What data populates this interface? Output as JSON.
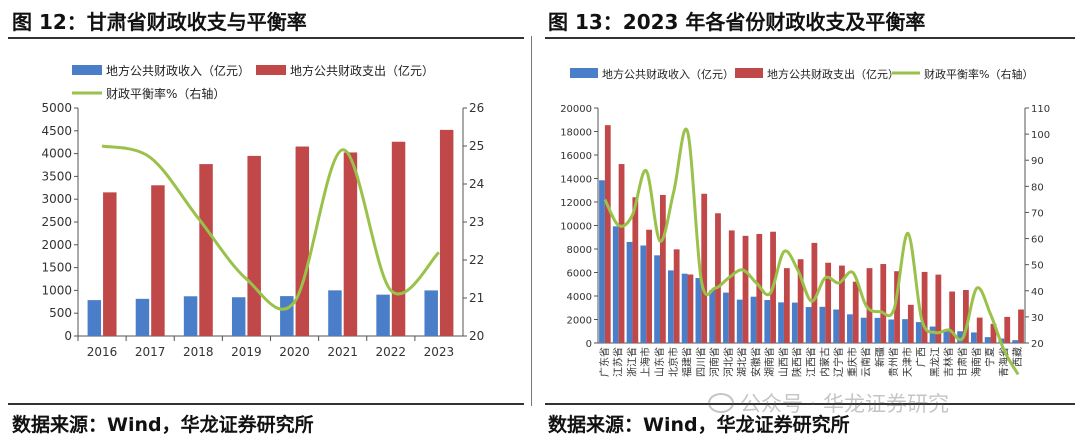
{
  "left_panel": {
    "title": "图 12：甘肃省财政收支与平衡率",
    "source": "数据来源：Wind，华龙证券研究所"
  },
  "right_panel": {
    "title": "图 13：2023 年各省份财政收支及平衡率",
    "source": "数据来源：Wind，华龙证券研究所"
  },
  "watermark": "公众号 · 华龙证券研究",
  "colors": {
    "revenue": "#4a7ec8",
    "expenditure": "#c04848",
    "ratio": "#9ac14a"
  },
  "chart_data": [
    {
      "type": "bar",
      "title": "甘肃省财政收支与平衡率",
      "categories": [
        "2016",
        "2017",
        "2018",
        "2019",
        "2020",
        "2021",
        "2022",
        "2023"
      ],
      "series": [
        {
          "name": "地方公共财政收入（亿元）",
          "axis": "left",
          "values": [
            787,
            815,
            871,
            850,
            875,
            1001,
            907,
            1000
          ]
        },
        {
          "name": "地方公共财政支出（亿元）",
          "axis": "left",
          "values": [
            3150,
            3305,
            3770,
            3950,
            4155,
            4025,
            4260,
            4520
          ]
        },
        {
          "name": "财政平衡率%（右轴）",
          "type": "line",
          "axis": "right",
          "values": [
            25.0,
            24.7,
            23.1,
            21.5,
            20.9,
            24.9,
            21.2,
            22.2
          ]
        }
      ],
      "ylim": [
        0,
        5000
      ],
      "yticks": [
        0,
        500,
        1000,
        1500,
        2000,
        2500,
        3000,
        3500,
        4000,
        4500,
        5000
      ],
      "y2lim": [
        20,
        26
      ],
      "y2ticks": [
        20,
        21,
        22,
        23,
        24,
        25,
        26
      ],
      "legend": "top"
    },
    {
      "type": "bar",
      "title": "2023 年各省份财政收支及平衡率",
      "categories": [
        "广东省",
        "江苏省",
        "浙江省",
        "上海市",
        "山东省",
        "北京市",
        "福建省",
        "四川省",
        "河南省",
        "河北省",
        "湖北省",
        "安徽省",
        "湖南省",
        "山西省",
        "陕西省",
        "江西省",
        "内蒙古",
        "辽宁省",
        "重庆市",
        "云南省",
        "新疆",
        "贵州省",
        "天津市",
        "广西",
        "黑龙江",
        "吉林省",
        "甘肃省",
        "海南省",
        "宁夏",
        "青海省",
        "西藏"
      ],
      "series": [
        {
          "name": "地方公共财政收入（亿元）",
          "axis": "left",
          "values": [
            13850,
            9930,
            8600,
            8300,
            7460,
            6180,
            5900,
            5530,
            4510,
            4290,
            3690,
            3940,
            3660,
            3460,
            3440,
            3060,
            3080,
            2850,
            2440,
            2150,
            2140,
            2000,
            2030,
            1780,
            1400,
            1100,
            1000,
            900,
            500,
            380,
            240
          ]
        },
        {
          "name": "地方公共财政支出（亿元）",
          "axis": "left",
          "values": [
            18540,
            15230,
            12400,
            9640,
            12600,
            7970,
            5830,
            12700,
            11040,
            9580,
            9120,
            9280,
            9470,
            6370,
            7130,
            8520,
            6830,
            6590,
            5220,
            6370,
            6720,
            6110,
            3250,
            6050,
            5820,
            4380,
            4510,
            2160,
            1630,
            2220,
            2850
          ]
        },
        {
          "name": "财政平衡率%（右轴）",
          "type": "line",
          "axis": "right",
          "values": [
            75,
            65,
            69,
            86,
            59,
            78,
            101,
            44,
            41,
            45,
            48,
            43,
            39,
            55,
            48,
            36,
            45,
            43,
            47,
            34,
            32,
            33,
            62,
            29,
            24,
            25,
            22,
            41,
            31,
            17,
            8
          ]
        }
      ],
      "ylim": [
        0,
        20000
      ],
      "yticks": [
        0,
        2000,
        4000,
        6000,
        8000,
        10000,
        12000,
        14000,
        16000,
        18000,
        20000
      ],
      "y2lim": [
        20,
        110
      ],
      "y2ticks": [
        20,
        30,
        40,
        50,
        60,
        70,
        80,
        90,
        100,
        110
      ],
      "legend": "top"
    }
  ]
}
